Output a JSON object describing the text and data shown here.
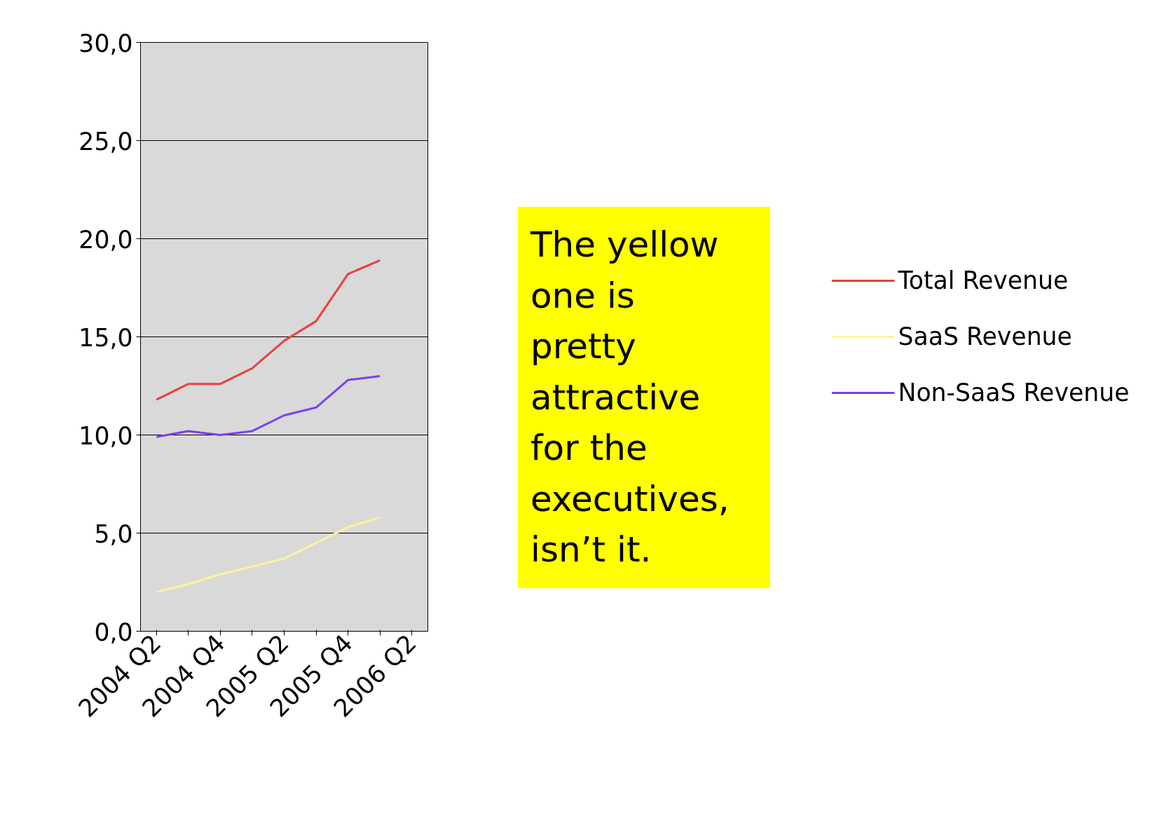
{
  "chart_data": {
    "type": "line",
    "categories": [
      "2004 Q2",
      null,
      "2004 Q4",
      null,
      "2005 Q2",
      null,
      "2005 Q4",
      null,
      "2006 Q2"
    ],
    "series": [
      {
        "name": "Total Revenue",
        "color": "#e8413c",
        "values": [
          11.8,
          12.6,
          12.6,
          13.4,
          14.8,
          15.8,
          18.2,
          18.9,
          null
        ]
      },
      {
        "name": "SaaS Revenue",
        "color": "#fff39a",
        "values": [
          2.0,
          2.4,
          2.9,
          3.3,
          3.7,
          4.5,
          5.3,
          5.8,
          null
        ]
      },
      {
        "name": "Non-SaaS Revenue",
        "color": "#7b3ff2",
        "values": [
          9.9,
          10.2,
          10.0,
          10.2,
          11.0,
          11.4,
          12.8,
          13.0,
          null
        ]
      }
    ],
    "ylim": [
      0,
      30
    ],
    "yticks": [
      {
        "value": 0,
        "label": "0,0"
      },
      {
        "value": 5,
        "label": "5,0"
      },
      {
        "value": 10,
        "label": "10,0"
      },
      {
        "value": 15,
        "label": "15,0"
      },
      {
        "value": 20,
        "label": "20,0"
      },
      {
        "value": 25,
        "label": "25,0"
      },
      {
        "value": 30,
        "label": "30,0"
      }
    ],
    "grid": "y",
    "legend": "right",
    "marker": "none",
    "line_style": "solid",
    "annotations": [
      "The yellow one is pretty attractive for the executives, isn’t it."
    ]
  }
}
